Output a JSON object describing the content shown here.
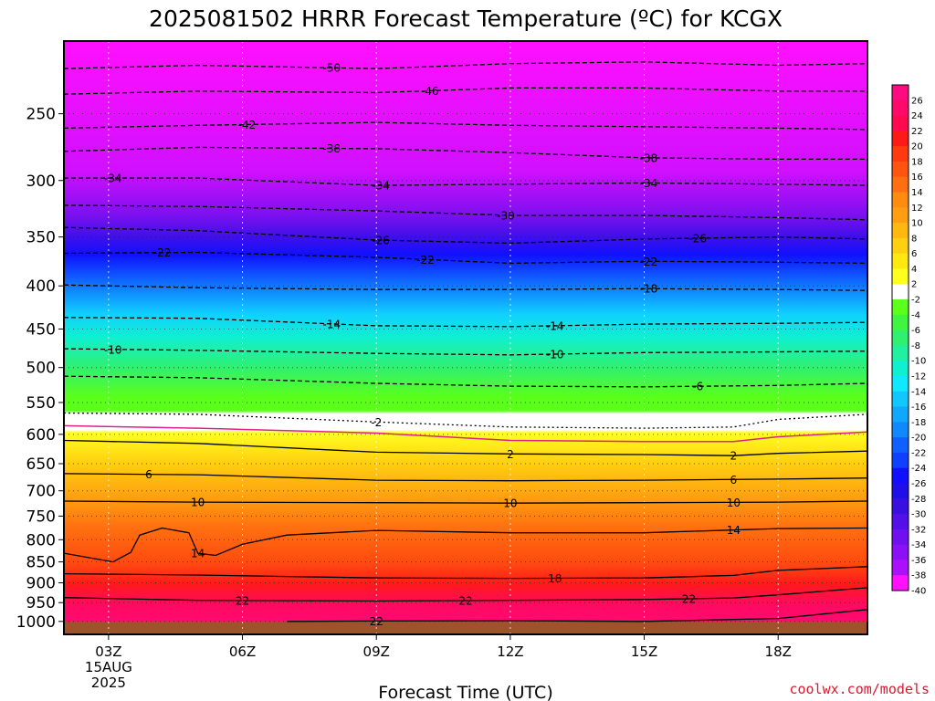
{
  "chart_data": {
    "type": "heatmap",
    "title": "2025081502 HRRR Forecast Temperature (ºC) for KCGX",
    "xlabel": "Forecast Time (UTC)",
    "ylabel": "",
    "credit": "coolwx.com/models",
    "x_ticks": [
      {
        "hour": 3,
        "lines": [
          "03Z",
          "15AUG",
          "2025"
        ]
      },
      {
        "hour": 6,
        "lines": [
          "06Z"
        ]
      },
      {
        "hour": 9,
        "lines": [
          "09Z"
        ]
      },
      {
        "hour": 12,
        "lines": [
          "12Z"
        ]
      },
      {
        "hour": 15,
        "lines": [
          "15Z"
        ]
      },
      {
        "hour": 18,
        "lines": [
          "18Z"
        ]
      }
    ],
    "xlim_hours": [
      2,
      20
    ],
    "y_axis_label_values": [
      250,
      300,
      350,
      400,
      450,
      500,
      550,
      600,
      650,
      700,
      750,
      800,
      850,
      900,
      950,
      1000
    ],
    "ylim_hpa": [
      205,
      1036
    ],
    "y_scale": "log",
    "ground_color": "#a0522d",
    "grid": "dotted",
    "colorbar": {
      "placement": "right",
      "tick_labels": [
        "26",
        "24",
        "22",
        "20",
        "18",
        "16",
        "14",
        "12",
        "10",
        "8",
        "6",
        "4",
        "2",
        "-2",
        "-4",
        "-6",
        "-8",
        "-10",
        "-12",
        "-14",
        "-16",
        "-18",
        "-20",
        "-22",
        "-24",
        "-26",
        "-28",
        "-30",
        "-32",
        "-34",
        "-36",
        "-38",
        "-40"
      ],
      "colors": [
        "#ff0a80",
        "#ff0a6a",
        "#ff0a50",
        "#ff1a1a",
        "#ff3a10",
        "#ff5510",
        "#ff6e10",
        "#ff8c10",
        "#ff9f10",
        "#ffb810",
        "#ffd010",
        "#ffe810",
        "#ffff20",
        "#ffffff",
        "#5aff1a",
        "#40f540",
        "#30f070",
        "#20f0a0",
        "#10f0d0",
        "#10e8ff",
        "#10c8ff",
        "#10a8ff",
        "#1088ff",
        "#1060ff",
        "#1040ff",
        "#1010ff",
        "#2010e8",
        "#3a10e0",
        "#5410e8",
        "#7010f0",
        "#8c10f5",
        "#aa10fa",
        "#ff10ff"
      ]
    },
    "isotherms": [
      {
        "value": -50,
        "label": "-50",
        "style": "dashed",
        "label_hour": 8.0,
        "points": [
          [
            2,
            221
          ],
          [
            5,
            219
          ],
          [
            9,
            221
          ],
          [
            12,
            218
          ],
          [
            15,
            217
          ],
          [
            18,
            219
          ],
          [
            20,
            218
          ]
        ]
      },
      {
        "value": -46,
        "label": "-46",
        "style": "dashed",
        "label_hour": 10.2,
        "points": [
          [
            2,
            237
          ],
          [
            5,
            235
          ],
          [
            9,
            236
          ],
          [
            12,
            233
          ],
          [
            15,
            233
          ],
          [
            18,
            235
          ],
          [
            20,
            235
          ]
        ]
      },
      {
        "value": -42,
        "label": "-42",
        "style": "dashed",
        "label_hour": 6.1,
        "points": [
          [
            2,
            260
          ],
          [
            5,
            258
          ],
          [
            9,
            256
          ],
          [
            12,
            258
          ],
          [
            15,
            259
          ],
          [
            18,
            260
          ],
          [
            20,
            261
          ]
        ]
      },
      {
        "value": -38,
        "label": "-38",
        "style": "dashed",
        "label_hour": 8.0,
        "points": [
          [
            2,
            277
          ],
          [
            5,
            274
          ],
          [
            9,
            275
          ],
          [
            12,
            278
          ],
          [
            15,
            282
          ],
          [
            18,
            283
          ],
          [
            20,
            283
          ]
        ]
      },
      {
        "value": -38,
        "label": "-38",
        "style": "dashed",
        "label_hour": 15.1,
        "points": []
      },
      {
        "value": -34,
        "label": "-34",
        "style": "dashed",
        "label_hour": 3.1,
        "points": [
          [
            2,
            298
          ],
          [
            5,
            298
          ],
          [
            9,
            304
          ],
          [
            12,
            303
          ],
          [
            15,
            302
          ],
          [
            18,
            303
          ],
          [
            20,
            304
          ]
        ]
      },
      {
        "value": -34,
        "label": "-34",
        "style": "dashed",
        "label_hour": 9.1,
        "points": []
      },
      {
        "value": -34,
        "label": "-34",
        "style": "dashed",
        "label_hour": 15.1,
        "points": []
      },
      {
        "value": -30,
        "label": "-30",
        "style": "dashed",
        "label_hour": 11.9,
        "points": [
          [
            2,
            321
          ],
          [
            5,
            322
          ],
          [
            9,
            326
          ],
          [
            12,
            330
          ],
          [
            15,
            330
          ],
          [
            18,
            332
          ],
          [
            20,
            334
          ]
        ]
      },
      {
        "value": -26,
        "label": "-26",
        "style": "dashed",
        "label_hour": 9.1,
        "points": [
          [
            2,
            341
          ],
          [
            5,
            344
          ],
          [
            9,
            353
          ],
          [
            12,
            356
          ],
          [
            15,
            352
          ],
          [
            18,
            350
          ],
          [
            20,
            352
          ]
        ]
      },
      {
        "value": -26,
        "label": "-26",
        "style": "dashed",
        "label_hour": 16.2,
        "points": []
      },
      {
        "value": -22,
        "label": "-22",
        "style": "dashed",
        "label_hour": 4.2,
        "points": [
          [
            2,
            366
          ],
          [
            5,
            365
          ],
          [
            9,
            370
          ],
          [
            12,
            376
          ],
          [
            15,
            374
          ],
          [
            18,
            375
          ],
          [
            20,
            376
          ]
        ]
      },
      {
        "value": -22,
        "label": "-22",
        "style": "dashed",
        "label_hour": 10.1,
        "points": []
      },
      {
        "value": -22,
        "label": "-22",
        "style": "dashed",
        "label_hour": 15.1,
        "points": []
      },
      {
        "value": -18,
        "label": "-18",
        "style": "dashed",
        "label_hour": 15.1,
        "points": [
          [
            2,
            399
          ],
          [
            5,
            402
          ],
          [
            9,
            404
          ],
          [
            12,
            404
          ],
          [
            15,
            403
          ],
          [
            18,
            404
          ],
          [
            20,
            405
          ]
        ]
      },
      {
        "value": -14,
        "label": "-14",
        "style": "dashed",
        "label_hour": 8.0,
        "points": [
          [
            2,
            436
          ],
          [
            5,
            437
          ],
          [
            9,
            446
          ],
          [
            12,
            447
          ],
          [
            15,
            444
          ],
          [
            18,
            443
          ],
          [
            20,
            442
          ]
        ]
      },
      {
        "value": -14,
        "label": "-14",
        "style": "dashed",
        "label_hour": 13.0,
        "points": []
      },
      {
        "value": -10,
        "label": "-10",
        "style": "dashed",
        "label_hour": 3.1,
        "points": [
          [
            2,
            475
          ],
          [
            5,
            477
          ],
          [
            9,
            481
          ],
          [
            12,
            483
          ],
          [
            15,
            480
          ],
          [
            18,
            479
          ],
          [
            20,
            478
          ]
        ]
      },
      {
        "value": -10,
        "label": "-10",
        "style": "dashed",
        "label_hour": 13.0,
        "points": []
      },
      {
        "value": -6,
        "label": "-6",
        "style": "dashed",
        "label_hour": 16.2,
        "points": [
          [
            2,
            512
          ],
          [
            5,
            514
          ],
          [
            9,
            522
          ],
          [
            12,
            526
          ],
          [
            15,
            527
          ],
          [
            18,
            525
          ],
          [
            20,
            522
          ]
        ]
      },
      {
        "value": -2,
        "label": "-2",
        "style": "dotted",
        "label_hour": 9.0,
        "points": [
          [
            2,
            566
          ],
          [
            5,
            568
          ],
          [
            9,
            580
          ],
          [
            12,
            588
          ],
          [
            15,
            590
          ],
          [
            17,
            588
          ],
          [
            18,
            576
          ],
          [
            20,
            568
          ]
        ]
      },
      {
        "value": 0,
        "label": "",
        "style": "magenta",
        "label_hour": null,
        "points": [
          [
            2,
            586
          ],
          [
            5,
            590
          ],
          [
            9,
            598
          ],
          [
            12,
            610
          ],
          [
            15,
            612
          ],
          [
            17,
            612
          ],
          [
            18,
            604
          ],
          [
            20,
            596
          ]
        ]
      },
      {
        "value": 2,
        "label": "2",
        "style": "solid",
        "label_hour": 12.0,
        "points": [
          [
            2,
            610
          ],
          [
            5,
            615
          ],
          [
            9,
            630
          ],
          [
            12,
            633
          ],
          [
            15,
            634
          ],
          [
            17,
            636
          ],
          [
            18,
            632
          ],
          [
            20,
            628
          ]
        ]
      },
      {
        "value": 2,
        "label": "2",
        "style": "solid",
        "label_hour": 17.0,
        "points": []
      },
      {
        "value": 6,
        "label": "6",
        "style": "solid",
        "label_hour": 3.9,
        "points": [
          [
            2,
            668
          ],
          [
            5,
            670
          ],
          [
            9,
            680
          ],
          [
            12,
            681
          ],
          [
            15,
            680
          ],
          [
            18,
            678
          ],
          [
            20,
            676
          ]
        ]
      },
      {
        "value": 6,
        "label": "6",
        "style": "solid",
        "label_hour": 17.0,
        "points": []
      },
      {
        "value": 10,
        "label": "10",
        "style": "solid",
        "label_hour": 5.0,
        "points": [
          [
            2,
            720
          ],
          [
            5,
            722
          ],
          [
            9,
            723
          ],
          [
            12,
            724
          ],
          [
            15,
            723
          ],
          [
            18,
            722
          ],
          [
            20,
            720
          ]
        ]
      },
      {
        "value": 10,
        "label": "10",
        "style": "solid",
        "label_hour": 12.0,
        "points": []
      },
      {
        "value": 10,
        "label": "10",
        "style": "solid",
        "label_hour": 17.0,
        "points": []
      },
      {
        "value": 14,
        "label": "14",
        "style": "solid",
        "label_hour": 5.0,
        "points": [
          [
            2,
            830
          ],
          [
            3.1,
            850
          ],
          [
            3.5,
            828
          ],
          [
            3.7,
            790
          ],
          [
            4.2,
            775
          ],
          [
            4.8,
            785
          ],
          [
            5.0,
            830
          ],
          [
            5.4,
            835
          ],
          [
            6.0,
            810
          ],
          [
            7.0,
            790
          ],
          [
            9,
            780
          ],
          [
            12,
            785
          ],
          [
            15,
            785
          ],
          [
            18,
            776
          ],
          [
            20,
            775
          ]
        ]
      },
      {
        "value": 14,
        "label": "14",
        "style": "solid",
        "label_hour": 17.0,
        "points": []
      },
      {
        "value": 18,
        "label": "18",
        "style": "solid",
        "label_hour": 13.0,
        "points": [
          [
            2,
            878
          ],
          [
            5,
            881
          ],
          [
            9,
            888
          ],
          [
            12,
            889
          ],
          [
            15,
            888
          ],
          [
            17,
            882
          ],
          [
            18,
            870
          ],
          [
            20,
            861
          ]
        ]
      },
      {
        "value": 22,
        "label": "22",
        "style": "solid",
        "label_hour": 6.0,
        "points": [
          [
            2,
            937
          ],
          [
            5,
            944
          ],
          [
            9,
            946
          ],
          [
            12,
            944
          ],
          [
            15,
            942
          ],
          [
            17,
            938
          ],
          [
            18,
            930
          ],
          [
            20,
            912
          ]
        ]
      },
      {
        "value": 22,
        "label": "22",
        "style": "solid",
        "label_hour": 11.0,
        "points": []
      },
      {
        "value": 22,
        "label": "22",
        "style": "solid",
        "label_hour": 16.0,
        "points": []
      },
      {
        "value": 22,
        "label": "22",
        "style": "solid",
        "label_hour": 9.0,
        "points": [
          [
            7,
            1000
          ],
          [
            9,
            999
          ],
          [
            12,
            998
          ],
          [
            15,
            1000
          ],
          [
            18,
            992
          ],
          [
            20,
            968
          ]
        ]
      }
    ]
  }
}
